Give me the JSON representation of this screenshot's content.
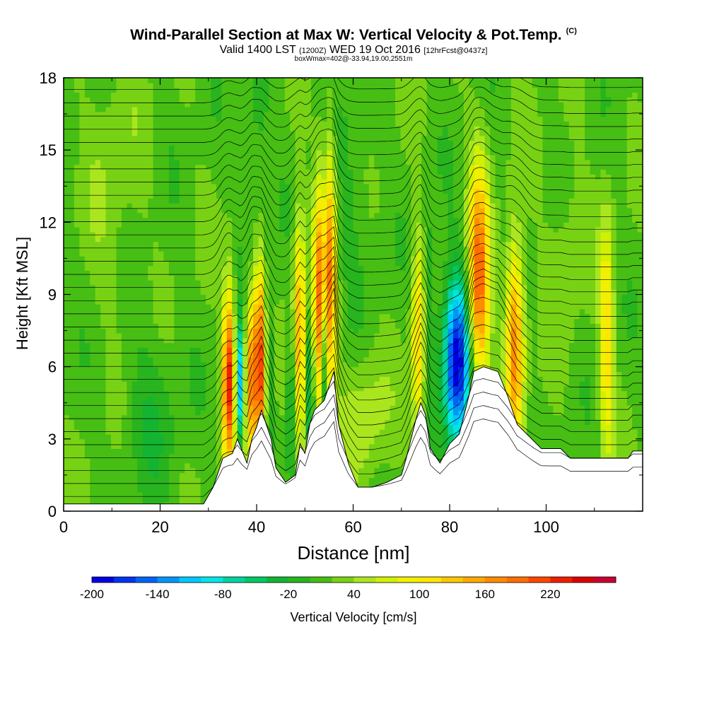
{
  "header": {
    "title": "Wind-Parallel Section at Max W: Vertical Velocity & Pot.Temp.",
    "title_mark": "(C)",
    "valid_prefix": "Valid 1400 LST",
    "valid_utc": "(1200Z)",
    "valid_date": "WED 19 Oct 2016",
    "forecast": "[12hrFcst@0437z]",
    "box_info": "boxWmax=402@-33.94,19.00,2551m"
  },
  "colorbar": {
    "label": "Vertical Velocity [cm/s]",
    "tick_labels": [
      "-200",
      "-140",
      "-80",
      "-20",
      "40",
      "100",
      "160",
      "220"
    ],
    "colors": [
      "#0000e6",
      "#0032f0",
      "#0064f5",
      "#0096f8",
      "#00c8ff",
      "#00e6e6",
      "#00d2a0",
      "#00c864",
      "#14b432",
      "#28b41e",
      "#46be14",
      "#78d214",
      "#aae61e",
      "#d2f000",
      "#f0f000",
      "#ffe600",
      "#ffc800",
      "#ffaa00",
      "#ff8c00",
      "#ff6e00",
      "#ff4600",
      "#f01e00",
      "#dc0000",
      "#c80032"
    ]
  },
  "chart_data": {
    "type": "heatmap",
    "title": "Wind-Parallel Section at Max W: Vertical Velocity & Pot.Temp.",
    "xlabel": "Distance [nm]",
    "ylabel": "Height [Kft MSL]",
    "xlim": [
      0,
      120
    ],
    "ylim": [
      0,
      18
    ],
    "x_ticks": [
      0,
      20,
      40,
      60,
      80,
      100
    ],
    "y_ticks": [
      0,
      3,
      6,
      9,
      12,
      15,
      18
    ],
    "colorbar_range": [
      -200,
      250
    ],
    "colorbar_step": 20,
    "background_value": 15,
    "terrain": [
      [
        0,
        0.3
      ],
      [
        29,
        0.3
      ],
      [
        31,
        1.0
      ],
      [
        33,
        2.2
      ],
      [
        35,
        2.4
      ],
      [
        36,
        3.0
      ],
      [
        38,
        2.0
      ],
      [
        39,
        3.0
      ],
      [
        40,
        3.5
      ],
      [
        41,
        4.2
      ],
      [
        43,
        3.0
      ],
      [
        44,
        1.8
      ],
      [
        46,
        1.2
      ],
      [
        48,
        1.5
      ],
      [
        49,
        2.8
      ],
      [
        50,
        2.4
      ],
      [
        51,
        3.6
      ],
      [
        52,
        4.2
      ],
      [
        54,
        4.6
      ],
      [
        56,
        5.8
      ],
      [
        57,
        3.6
      ],
      [
        59,
        2.0
      ],
      [
        61,
        1.0
      ],
      [
        64,
        1.0
      ],
      [
        67,
        1.2
      ],
      [
        70,
        1.5
      ],
      [
        71,
        2.2
      ],
      [
        73,
        3.8
      ],
      [
        74,
        4.5
      ],
      [
        75,
        4.0
      ],
      [
        76,
        2.6
      ],
      [
        78,
        2.0
      ],
      [
        80,
        2.8
      ],
      [
        82,
        3.2
      ],
      [
        84,
        4.8
      ],
      [
        85,
        5.8
      ],
      [
        87,
        6.0
      ],
      [
        90,
        5.8
      ],
      [
        92,
        4.8
      ],
      [
        94,
        3.6
      ],
      [
        96,
        3.2
      ],
      [
        99,
        2.6
      ],
      [
        103,
        2.6
      ],
      [
        105,
        2.2
      ],
      [
        117,
        2.2
      ],
      [
        118,
        2.5
      ],
      [
        120,
        2.5
      ]
    ],
    "velocity_features": [
      {
        "x": 34.2,
        "z": 5.5,
        "sx": 0.9,
        "sz": 2.6,
        "w": 210
      },
      {
        "x": 36.5,
        "z": 5.2,
        "sx": 0.6,
        "sz": 1.8,
        "w": -140
      },
      {
        "x": 38.5,
        "z": 5.5,
        "sx": 0.7,
        "sz": 2.4,
        "w": 140
      },
      {
        "x": 40.5,
        "z": 6.0,
        "sx": 0.9,
        "sz": 3.0,
        "w": 220
      },
      {
        "x": 42.7,
        "z": 6.2,
        "sx": 0.8,
        "sz": 2.4,
        "w": -40
      },
      {
        "x": 47.5,
        "z": 4.5,
        "sx": 0.9,
        "sz": 2.5,
        "w": -70
      },
      {
        "x": 48.8,
        "z": 7.0,
        "sx": 0.9,
        "sz": 3.5,
        "w": 150
      },
      {
        "x": 51.0,
        "z": 5.2,
        "sx": 0.6,
        "sz": 2.0,
        "w": -60
      },
      {
        "x": 52.8,
        "z": 8.5,
        "sx": 0.8,
        "sz": 3.5,
        "w": 160
      },
      {
        "x": 54.1,
        "z": 6.0,
        "sx": 0.6,
        "sz": 2.2,
        "w": -90
      },
      {
        "x": 55.2,
        "z": 9.5,
        "sx": 0.9,
        "sz": 4.0,
        "w": 160
      },
      {
        "x": 73.5,
        "z": 7.0,
        "sx": 1.0,
        "sz": 3.0,
        "w": 110
      },
      {
        "x": 75.8,
        "z": 8.5,
        "sx": 1.0,
        "sz": 3.0,
        "w": -40
      },
      {
        "x": 81.5,
        "z": 6.2,
        "sx": 2.0,
        "sz": 2.4,
        "w": -210
      },
      {
        "x": 86.0,
        "z": 9.5,
        "sx": 1.5,
        "sz": 3.2,
        "w": 190
      },
      {
        "x": 93.5,
        "z": 7.0,
        "sx": 1.3,
        "sz": 3.0,
        "w": 160
      },
      {
        "x": 112.5,
        "z": 7.0,
        "sx": 1.0,
        "sz": 3.5,
        "w": 100
      },
      {
        "x": 104,
        "z": 11.0,
        "sx": 3.0,
        "sz": 3.0,
        "w": 20
      },
      {
        "x": 40,
        "z": 15,
        "sx": 2.0,
        "sz": 4.0,
        "w": -30
      },
      {
        "x": 60,
        "z": 13,
        "sx": 3.0,
        "sz": 3.0,
        "w": -20
      },
      {
        "x": 62,
        "z": 4.0,
        "sx": 3.5,
        "sz": 1.8,
        "w": 40
      },
      {
        "x": 10,
        "z": 14,
        "sx": 4.0,
        "sz": 4.0,
        "w": 20
      },
      {
        "x": 18,
        "z": 4.0,
        "sx": 4.0,
        "sz": 2.5,
        "w": -30
      }
    ]
  }
}
